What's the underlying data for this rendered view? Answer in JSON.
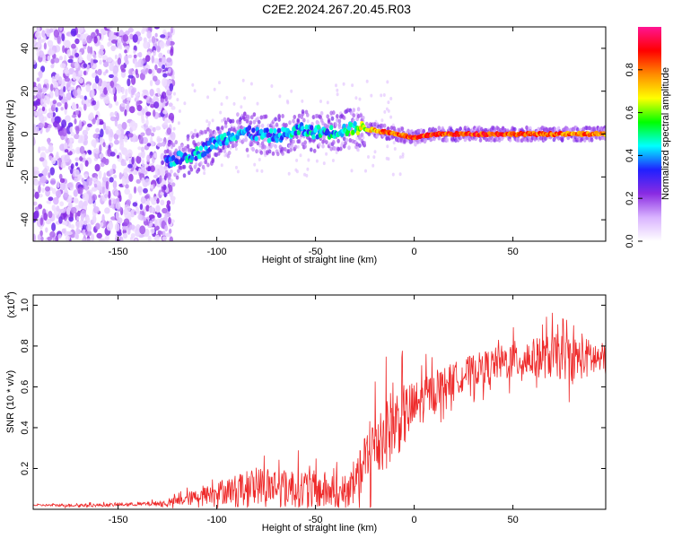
{
  "title": "C2E2.2024.267.20.45.R03",
  "chart_data": [
    {
      "type": "heatmap",
      "xlabel": "Height of straight line (km)",
      "ylabel": "Frequency (Hz)",
      "xlim": [
        -193,
        97
      ],
      "ylim": [
        -50,
        50
      ],
      "xticks": [
        -150,
        -100,
        -50,
        0,
        50
      ],
      "yticks": [
        -40,
        -20,
        0,
        20,
        40
      ],
      "xtick_labels": [
        "-150",
        "-100",
        "-50",
        "0",
        "50"
      ],
      "ytick_labels": [
        "-40",
        "-20",
        "0",
        "20",
        "40"
      ],
      "colorbar": {
        "label": "Normalized spectral amplitude",
        "range": [
          0,
          1
        ],
        "ticks": [
          0.0,
          0.2,
          0.4,
          0.6,
          0.8
        ],
        "tick_labels": [
          "0.0",
          "0.2",
          "0.4",
          "0.6",
          "0.8"
        ],
        "colors": [
          "#ffffff",
          "#d9b3ff",
          "#8a2be2",
          "#2020ff",
          "#00ffff",
          "#00ff00",
          "#ffff00",
          "#ff8c00",
          "#ff0000",
          "#ff1493"
        ]
      },
      "noise_region_x": [
        -193,
        -122
      ],
      "ridge": [
        {
          "x": -126,
          "f": -13,
          "a": 0.35
        },
        {
          "x": -118,
          "f": -11,
          "a": 0.4
        },
        {
          "x": -110,
          "f": -9,
          "a": 0.4
        },
        {
          "x": -103,
          "f": -5,
          "a": 0.38
        },
        {
          "x": -96,
          "f": -2,
          "a": 0.38
        },
        {
          "x": -88,
          "f": 1,
          "a": 0.38
        },
        {
          "x": -80,
          "f": 0,
          "a": 0.36
        },
        {
          "x": -72,
          "f": -1,
          "a": 0.38
        },
        {
          "x": -65,
          "f": 0,
          "a": 0.4
        },
        {
          "x": -58,
          "f": 2,
          "a": 0.4
        },
        {
          "x": -50,
          "f": 1,
          "a": 0.4
        },
        {
          "x": -42,
          "f": 1,
          "a": 0.42
        },
        {
          "x": -35,
          "f": 2,
          "a": 0.45
        },
        {
          "x": -28,
          "f": 3,
          "a": 0.55
        },
        {
          "x": -22,
          "f": 2,
          "a": 0.8
        },
        {
          "x": -15,
          "f": 1,
          "a": 0.9
        },
        {
          "x": -8,
          "f": 0,
          "a": 0.9
        },
        {
          "x": 0,
          "f": -2,
          "a": 0.92
        },
        {
          "x": 10,
          "f": 0,
          "a": 0.95
        },
        {
          "x": 30,
          "f": 0,
          "a": 0.95
        },
        {
          "x": 50,
          "f": 0,
          "a": 0.95
        },
        {
          "x": 70,
          "f": 0,
          "a": 0.92
        },
        {
          "x": 85,
          "f": 0,
          "a": 0.88
        },
        {
          "x": 97,
          "f": 0,
          "a": 0.85
        }
      ]
    },
    {
      "type": "line",
      "xlabel": "Height of straight line (km)",
      "ylabel": "SNR (10 * v/v)",
      "y_multiplier_label": "(x10",
      "y_multiplier_exp": "4",
      "y_multiplier_close": ")",
      "xlim": [
        -193,
        97
      ],
      "ylim": [
        0,
        1.05
      ],
      "xticks": [
        -150,
        -100,
        -50,
        0,
        50
      ],
      "yticks": [
        0.2,
        0.4,
        0.6,
        0.8,
        1.0
      ],
      "xtick_labels": [
        "-150",
        "-100",
        "-50",
        "0",
        "50"
      ],
      "ytick_labels": [
        "0.2",
        "0.4",
        "0.6",
        "0.8",
        "1.0"
      ],
      "series": [
        {
          "name": "SNR",
          "color": "#ee2a2a",
          "x": [
            -193,
            -180,
            -160,
            -140,
            -125,
            -115,
            -105,
            -95,
            -85,
            -75,
            -65,
            -55,
            -45,
            -35,
            -30,
            -25,
            -20,
            -15,
            -10,
            -5,
            0,
            10,
            20,
            30,
            40,
            50,
            60,
            70,
            80,
            90,
            97
          ],
          "y": [
            0.02,
            0.02,
            0.02,
            0.025,
            0.03,
            0.05,
            0.07,
            0.09,
            0.11,
            0.12,
            0.11,
            0.1,
            0.09,
            0.07,
            0.09,
            0.22,
            0.32,
            0.38,
            0.42,
            0.46,
            0.5,
            0.58,
            0.64,
            0.68,
            0.71,
            0.73,
            0.74,
            0.75,
            0.74,
            0.74,
            0.73
          ],
          "noise_amp": [
            0.005,
            0.008,
            0.01,
            0.01,
            0.02,
            0.04,
            0.06,
            0.08,
            0.1,
            0.12,
            0.12,
            0.12,
            0.12,
            0.1,
            0.14,
            0.2,
            0.24,
            0.24,
            0.22,
            0.2,
            0.16,
            0.12,
            0.1,
            0.1,
            0.1,
            0.12,
            0.12,
            0.14,
            0.14,
            0.12,
            0.1
          ]
        }
      ]
    }
  ]
}
